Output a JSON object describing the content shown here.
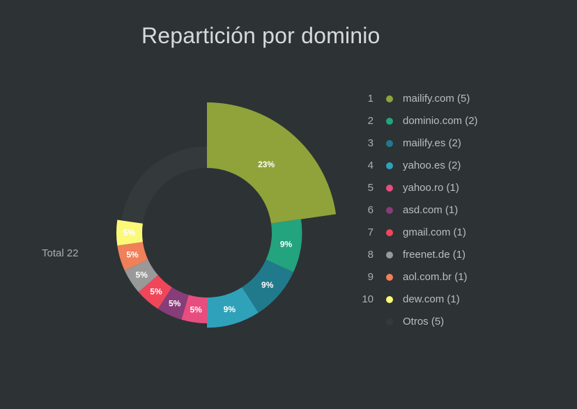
{
  "chart_data": {
    "type": "pie",
    "title": "Repartición por dominio",
    "categories": [
      "mailify.com",
      "dominio.com",
      "mailify.es",
      "yahoo.es",
      "yahoo.ro",
      "asd.com",
      "gmail.com",
      "freenet.de",
      "aol.com.br",
      "dew.com",
      "Otros"
    ],
    "values": [
      5,
      2,
      2,
      2,
      1,
      1,
      1,
      1,
      1,
      1,
      5
    ],
    "percent_labels": [
      "23%",
      "9%",
      "9%",
      "9%",
      "5%",
      "5%",
      "5%",
      "5%",
      "5%",
      "5%",
      ""
    ],
    "colors": [
      "#8fa33a",
      "#23a37e",
      "#217a8c",
      "#2fa2ba",
      "#e74e7f",
      "#873d78",
      "#f0465a",
      "#999999",
      "#f0805a",
      "#fafa78",
      "#34393c"
    ],
    "legend_placement": "right",
    "legend": [
      {
        "index": "1",
        "label": "mailify.com (5)"
      },
      {
        "index": "2",
        "label": "dominio.com (2)"
      },
      {
        "index": "3",
        "label": "mailify.es (2)"
      },
      {
        "index": "4",
        "label": "yahoo.es (2)"
      },
      {
        "index": "5",
        "label": "yahoo.ro (1)"
      },
      {
        "index": "6",
        "label": "asd.com (1)"
      },
      {
        "index": "7",
        "label": "gmail.com (1)"
      },
      {
        "index": "8",
        "label": "freenet.de (1)"
      },
      {
        "index": "9",
        "label": "aol.com.br (1)"
      },
      {
        "index": "10",
        "label": "dew.com (1)"
      },
      {
        "index": "",
        "label": "Otros (5)"
      }
    ],
    "total_label": "Total 22"
  }
}
